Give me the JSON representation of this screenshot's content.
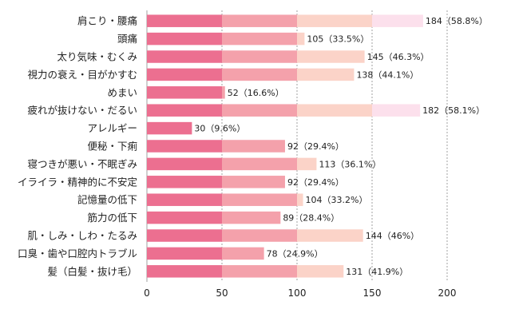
{
  "chart_data": {
    "type": "bar",
    "orientation": "horizontal",
    "categories": [
      "肩こり・腰痛",
      "頭痛",
      "太り気味・むくみ",
      "視力の衰え・目がかすむ",
      "めまい",
      "疲れが抜けない・だるい",
      "アレルギー",
      "便秘・下痢",
      "寝つきが悪い・不眠ぎみ",
      "イライラ・精神的に不安定",
      "記憶量の低下",
      "筋力の低下",
      "肌・しみ・しわ・たるみ",
      "口臭・歯や口腔内トラブル",
      "髪（白髪・抜け毛）"
    ],
    "values": [
      184,
      105,
      145,
      138,
      52,
      182,
      30,
      92,
      113,
      92,
      104,
      89,
      144,
      78,
      131
    ],
    "data_labels": [
      "184（58.8%）",
      "105（33.5%）",
      "145（46.3%）",
      "138（44.1%）",
      "52（16.6%）",
      "182（58.1%）",
      "30（9.6%）",
      "92（29.4%）",
      "113（36.1%）",
      "92（29.4%）",
      "104（33.2%）",
      "89（28.4%）",
      "144（46%）",
      "78（24.9%）",
      "131（41.9%）"
    ],
    "x_ticks": [
      0,
      50,
      100,
      150,
      200
    ],
    "x_tick_labels": [
      "0",
      "50",
      "100",
      "150",
      "200"
    ],
    "xlim": [
      0,
      200
    ],
    "grid": true,
    "segment_colors": [
      "#ec6f90",
      "#f4a1ab",
      "#fbd3c8",
      "#fce0ec"
    ]
  }
}
